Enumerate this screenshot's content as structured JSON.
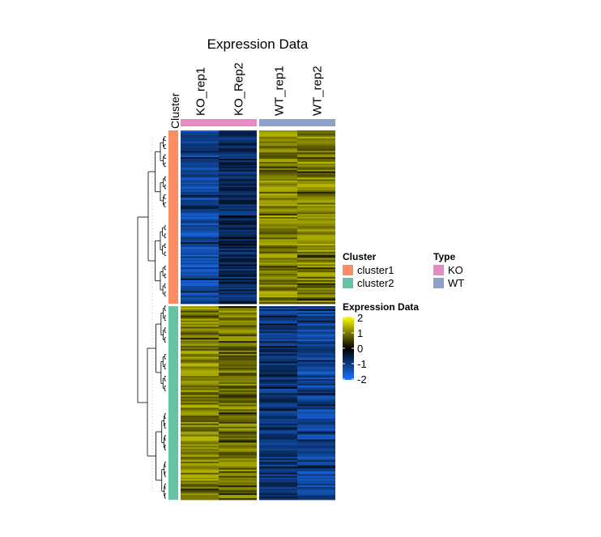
{
  "chart_data": {
    "type": "heatmap",
    "title": "Expression Data",
    "columns": [
      "KO_rep1",
      "KO_Rep2",
      "WT_rep1",
      "WT_rep2"
    ],
    "column_type": [
      "KO",
      "KO",
      "WT",
      "WT"
    ],
    "row_annotation_label": "Cluster",
    "clusters": [
      {
        "name": "cluster1",
        "n_rows": 110,
        "approx_values": {
          "KO_rep1": -1.3,
          "KO_Rep2": -0.7,
          "WT_rep1": 1.0,
          "WT_rep2": 1.0
        }
      },
      {
        "name": "cluster2",
        "n_rows": 122,
        "approx_values": {
          "KO_rep1": 1.0,
          "KO_Rep2": 0.9,
          "WT_rep1": -0.9,
          "WT_rep2": -1.2
        }
      }
    ],
    "color_scale": {
      "min": -2,
      "max": 2,
      "stops": [
        {
          "value": -2,
          "color": "#1a74ff"
        },
        {
          "value": 0,
          "color": "#000000"
        },
        {
          "value": 2,
          "color": "#ffff00"
        }
      ]
    },
    "legends": {
      "cluster": {
        "title": "Cluster",
        "items": [
          {
            "label": "cluster1",
            "color": "#fc8d62"
          },
          {
            "label": "cluster2",
            "color": "#66c2a5"
          }
        ]
      },
      "type": {
        "title": "Type",
        "items": [
          {
            "label": "KO",
            "color": "#e78ac3"
          },
          {
            "label": "WT",
            "color": "#8da0cb"
          }
        ]
      },
      "expression": {
        "title": "Expression Data",
        "ticks": [
          "2",
          "1",
          "0",
          "-1",
          "-2"
        ]
      }
    }
  }
}
